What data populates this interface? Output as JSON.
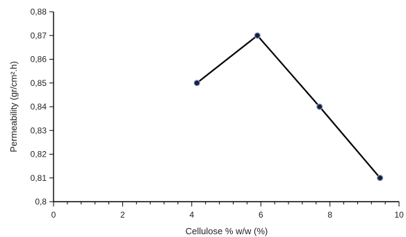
{
  "chart_data": {
    "type": "line",
    "xlabel": "Cellulose % w/w (%)",
    "ylabel": "Permeability (gr/cm².h)",
    "xlim": [
      0,
      10
    ],
    "ylim": [
      0.8,
      0.88
    ],
    "x_ticks": [
      0,
      2,
      4,
      6,
      8,
      10
    ],
    "x_tick_labels": [
      "0",
      "2",
      "4",
      "6",
      "8",
      "10"
    ],
    "y_ticks": [
      0.8,
      0.81,
      0.82,
      0.83,
      0.84,
      0.85,
      0.86,
      0.87,
      0.88
    ],
    "y_tick_labels": [
      "0,8",
      "0,81",
      "0,82",
      "0,83",
      "0,84",
      "0,85",
      "0,86",
      "0,87",
      "0,88"
    ],
    "x_minor_per_major": 5,
    "grid": false,
    "series": [
      {
        "x": [
          4.15,
          5.9,
          7.7,
          9.45
        ],
        "y": [
          0.85,
          0.87,
          0.84,
          0.81
        ],
        "color": "#000000",
        "marker_color": "#14213d"
      }
    ]
  }
}
